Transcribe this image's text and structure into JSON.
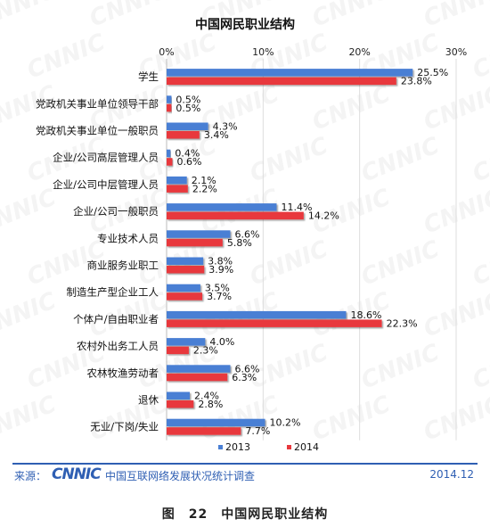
{
  "chart_data": {
    "type": "bar",
    "orientation": "horizontal",
    "title": "中国网民职业结构",
    "categories": [
      "学生",
      "党政机关事业单位领导干部",
      "党政机关事业单位一般职员",
      "企业/公司高层管理人员",
      "企业/公司中层管理人员",
      "企业/公司一般职员",
      "专业技术人员",
      "商业服务业职工",
      "制造生产型企业工人",
      "个体户/自由职业者",
      "农村外出务工人员",
      "农林牧渔劳动者",
      "退休",
      "无业/下岗/失业"
    ],
    "series": [
      {
        "name": "2013",
        "color": "#4a7fd4",
        "values": [
          25.5,
          0.5,
          4.3,
          0.4,
          2.1,
          11.4,
          6.6,
          3.8,
          3.5,
          18.6,
          4.0,
          6.6,
          2.4,
          10.2
        ]
      },
      {
        "name": "2014",
        "color": "#e8383d",
        "values": [
          23.8,
          0.5,
          3.4,
          0.6,
          2.2,
          14.2,
          5.8,
          3.9,
          3.7,
          22.3,
          2.3,
          6.3,
          2.8,
          7.7
        ]
      }
    ],
    "x_ticks": [
      "0%",
      "10%",
      "20%",
      "30%"
    ],
    "xlim": [
      0,
      30
    ],
    "value_suffix": "%",
    "grid": true,
    "legend_position": "bottom-center"
  },
  "watermark": {
    "text": "CNNIC"
  },
  "footer": {
    "source_label": "来源：",
    "logo": "CNNIC",
    "survey": "中国互联网络发展状况统计调查",
    "date": "2014.12"
  },
  "caption": "图　22　中国网民职业结构"
}
